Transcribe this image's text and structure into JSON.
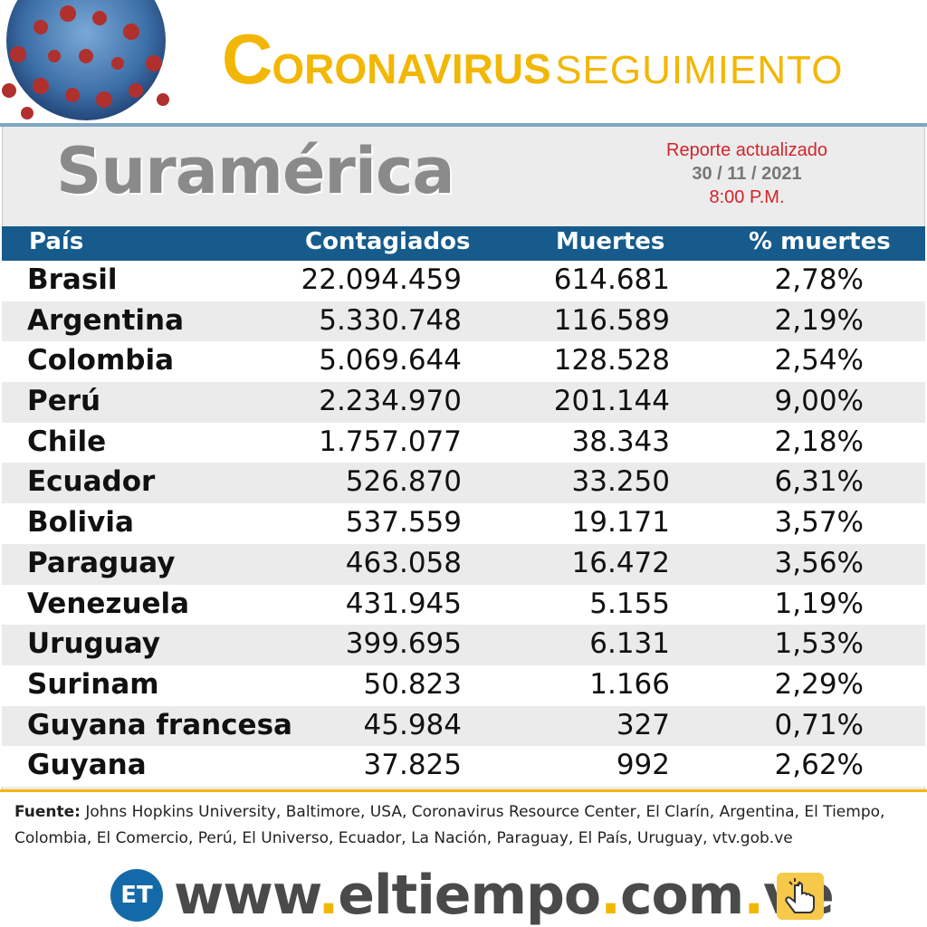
{
  "header": {
    "title_initial": "C",
    "title_rest": "ORONAVIRUS",
    "title_second": "SEGUIMIENTO",
    "virus_image": "coronavirus-illustration"
  },
  "region": "Suramérica",
  "report": {
    "line1": "Reporte actualizado",
    "date": "30 / 11 / 2021",
    "time": "8:00 P.M."
  },
  "table": {
    "headers": [
      "País",
      "Contagiados",
      "Muertes",
      "% muertes"
    ],
    "rows": [
      {
        "country": "Brasil",
        "cases": "22.094.459",
        "deaths": "614.681",
        "pct": "2,78%"
      },
      {
        "country": "Argentina",
        "cases": "5.330.748",
        "deaths": "116.589",
        "pct": "2,19%"
      },
      {
        "country": "Colombia",
        "cases": "5.069.644",
        "deaths": "128.528",
        "pct": "2,54%"
      },
      {
        "country": "Perú",
        "cases": "2.234.970",
        "deaths": "201.144",
        "pct": "9,00%"
      },
      {
        "country": "Chile",
        "cases": "1.757.077",
        "deaths": "38.343",
        "pct": "2,18%"
      },
      {
        "country": "Ecuador",
        "cases": "526.870",
        "deaths": "33.250",
        "pct": "6,31%"
      },
      {
        "country": "Bolivia",
        "cases": "537.559",
        "deaths": "19.171",
        "pct": "3,57%"
      },
      {
        "country": "Paraguay",
        "cases": "463.058",
        "deaths": "16.472",
        "pct": "3,56%"
      },
      {
        "country": "Venezuela",
        "cases": "431.945",
        "deaths": "5.155",
        "pct": "1,19%"
      },
      {
        "country": "Uruguay",
        "cases": "399.695",
        "deaths": "6.131",
        "pct": "1,53%"
      },
      {
        "country": "Surinam",
        "cases": "50.823",
        "deaths": "1.166",
        "pct": "2,29%"
      },
      {
        "country": "Guyana francesa",
        "cases": "45.984",
        "deaths": "327",
        "pct": "0,71%"
      },
      {
        "country": "Guyana",
        "cases": "37.825",
        "deaths": "992",
        "pct": "2,62%"
      }
    ]
  },
  "source": {
    "label": "Fuente:",
    "text": "Johns Hopkins University, Baltimore, USA, Coronavirus Resource Center,  El Clarín, Argentina, El Tiempo, Colombia, El Comercio, Perú, El Universo, Ecuador, La Nación, Paraguay, El País, Uruguay, vtv.gob.ve"
  },
  "brand": {
    "logo": "ET",
    "url_www": "www",
    "url_name": "eltiempo",
    "url_com": "com",
    "url_ve": "ve",
    "dot": ".",
    "click_icon": "hand-pointer-icon"
  },
  "colors": {
    "title_yellow": "#f2b705",
    "table_header_blue": "#165b8c",
    "report_red": "#d3242c",
    "region_gray": "#8a8a8a"
  }
}
